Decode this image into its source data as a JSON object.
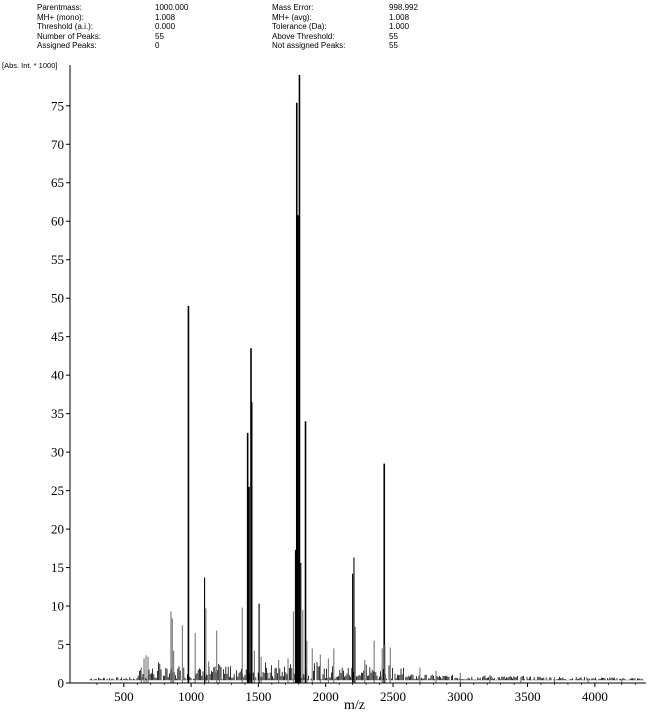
{
  "header": {
    "left": [
      {
        "label": "Parentmass:",
        "value": "1000.000"
      },
      {
        "label": "MH+ (mono):",
        "value": "1.008"
      },
      {
        "label": "Threshold (a.i.):",
        "value": "0.000"
      },
      {
        "label": "Number of Peaks:",
        "value": "55"
      },
      {
        "label": "Assigned Peaks:",
        "value": "0"
      }
    ],
    "right": [
      {
        "label": "Mass Error:",
        "value": "998.992"
      },
      {
        "label": "MH+ (avg):",
        "value": "1.008"
      },
      {
        "label": "Tolerance (Da):",
        "value": "1.000"
      },
      {
        "label": "Above Threshold:",
        "value": "55"
      },
      {
        "label": "Not assigned Peaks:",
        "value": "55"
      }
    ]
  },
  "chart_data": {
    "type": "bar",
    "ylabel": "[Abs. Int. * 1000]",
    "xlabel": "m/z",
    "xlim": [
      100,
      4380
    ],
    "ylim": [
      0,
      79
    ],
    "xticks": [
      500,
      1000,
      1500,
      2000,
      2500,
      3000,
      3500,
      4000
    ],
    "yticks": [
      0,
      5,
      10,
      15,
      20,
      25,
      30,
      35,
      40,
      45,
      50,
      55,
      60,
      65,
      70,
      75
    ],
    "grid": false,
    "colors": {
      "peaks": "#000000",
      "minor_peaks": "#777777"
    },
    "peaks": [
      {
        "x": 630,
        "y": 2.0
      },
      {
        "x": 650,
        "y": 3.2
      },
      {
        "x": 665,
        "y": 3.6
      },
      {
        "x": 680,
        "y": 3.4
      },
      {
        "x": 850,
        "y": 9.3
      },
      {
        "x": 860,
        "y": 8.4
      },
      {
        "x": 870,
        "y": 4.2
      },
      {
        "x": 935,
        "y": 7.5
      },
      {
        "x": 980,
        "y": 49.0
      },
      {
        "x": 1030,
        "y": 6.5
      },
      {
        "x": 1100,
        "y": 13.7
      },
      {
        "x": 1110,
        "y": 9.7
      },
      {
        "x": 1130,
        "y": 2.8
      },
      {
        "x": 1190,
        "y": 6.8
      },
      {
        "x": 1210,
        "y": 2.3
      },
      {
        "x": 1380,
        "y": 9.8
      },
      {
        "x": 1420,
        "y": 32.5
      },
      {
        "x": 1430,
        "y": 25.5
      },
      {
        "x": 1445,
        "y": 43.5
      },
      {
        "x": 1450,
        "y": 36.5
      },
      {
        "x": 1470,
        "y": 4.2
      },
      {
        "x": 1505,
        "y": 10.3
      },
      {
        "x": 1520,
        "y": 3.4
      },
      {
        "x": 1650,
        "y": 3.0
      },
      {
        "x": 1720,
        "y": 3.2
      },
      {
        "x": 1760,
        "y": 9.3
      },
      {
        "x": 1775,
        "y": 17.3
      },
      {
        "x": 1785,
        "y": 75.4
      },
      {
        "x": 1795,
        "y": 60.8
      },
      {
        "x": 1805,
        "y": 79.0
      },
      {
        "x": 1815,
        "y": 15.6
      },
      {
        "x": 1830,
        "y": 9.5
      },
      {
        "x": 1850,
        "y": 34.0
      },
      {
        "x": 1860,
        "y": 5.5
      },
      {
        "x": 1900,
        "y": 4.5
      },
      {
        "x": 1960,
        "y": 3.7
      },
      {
        "x": 2020,
        "y": 3.2
      },
      {
        "x": 2060,
        "y": 4.5
      },
      {
        "x": 2200,
        "y": 14.2
      },
      {
        "x": 2210,
        "y": 16.3
      },
      {
        "x": 2220,
        "y": 7.3
      },
      {
        "x": 2290,
        "y": 3.0
      },
      {
        "x": 2360,
        "y": 5.5
      },
      {
        "x": 2420,
        "y": 4.5
      },
      {
        "x": 2435,
        "y": 28.5
      },
      {
        "x": 2440,
        "y": 5.0
      },
      {
        "x": 2480,
        "y": 4.6
      },
      {
        "x": 2700,
        "y": 2.0
      },
      {
        "x": 2820,
        "y": 1.6
      },
      {
        "x": 3000,
        "y": 1.3
      },
      {
        "x": 3220,
        "y": 1.0
      },
      {
        "x": 3450,
        "y": 0.8
      },
      {
        "x": 3700,
        "y": 0.8
      },
      {
        "x": 3950,
        "y": 0.6
      },
      {
        "x": 4200,
        "y": 0.5
      }
    ]
  }
}
